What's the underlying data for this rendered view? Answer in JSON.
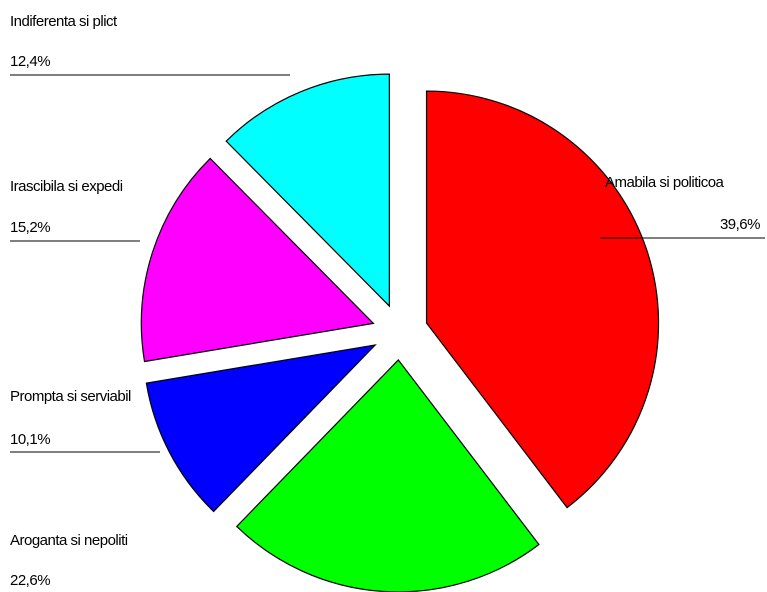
{
  "chart_data": {
    "type": "pie",
    "categories": [
      "Amabila si politicoa",
      "Aroganta si nepoliti",
      "Prompta si serviabil",
      "Irascibila si expedi",
      "Indiferenta si plict"
    ],
    "values": [
      39.6,
      22.6,
      10.1,
      15.2,
      12.4
    ],
    "value_labels": [
      "39,6%",
      "22,6%",
      "10,1%",
      "15,2%",
      "12,4%"
    ],
    "colors": [
      "#ff0000",
      "#00ff00",
      "#0000ff",
      "#ff00ff",
      "#00ffff"
    ]
  }
}
